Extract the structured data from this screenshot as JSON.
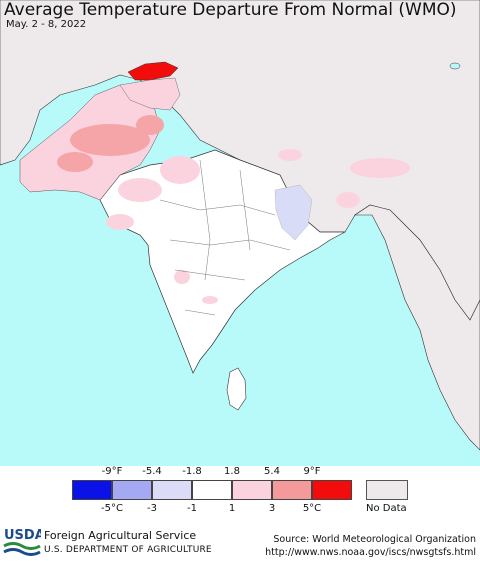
{
  "title": "Average Temperature Departure From Normal (WMO)",
  "date_range": "May. 2 - 8, 2022",
  "legend": {
    "fahrenheit_ticks": [
      "-9°F",
      "-5.4",
      "-1.8",
      "1.8",
      "5.4",
      "9°F"
    ],
    "celsius_ticks": [
      "-5°C",
      "-3",
      "-1",
      "1",
      "3",
      "5°C"
    ],
    "colors": [
      "#0a12e8",
      "#a5a8f2",
      "#dcdcf8",
      "#ffffff",
      "#fbd3df",
      "#f59a9a",
      "#f20c0c"
    ],
    "no_data_label": "No Data",
    "no_data_color": "#eeeaec"
  },
  "map_colors": {
    "ocean": "#b8fafa",
    "land_nodata": "#eeeaec",
    "india_base": "#ffffff",
    "warm_light": "#fbd3df",
    "warm_mid": "#f5a4a8",
    "warm_strong": "#f20c0c",
    "cool_light": "#d8dcf6"
  },
  "footer": {
    "logo_text": "USDA",
    "agency": "Foreign Agricultural Service",
    "department": "U.S. DEPARTMENT OF AGRICULTURE",
    "source_line": "Source: World Meteorological Organization",
    "source_url": "http://www.nws.noaa.gov/iscs/nwsgtsfs.html"
  }
}
